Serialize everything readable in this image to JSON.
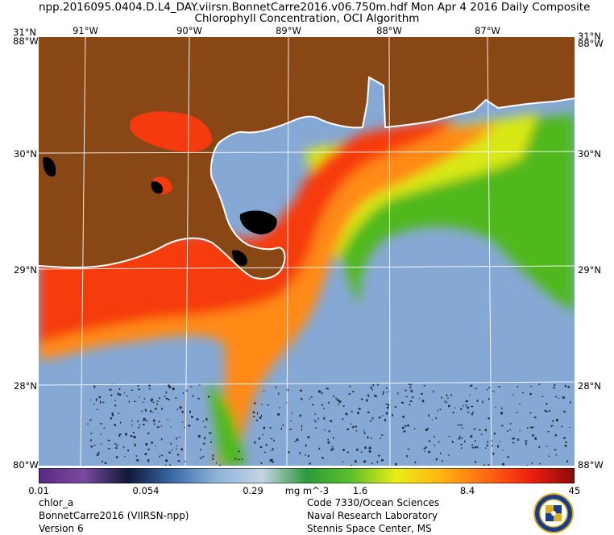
{
  "header": {
    "line1": "npp.2016095.0404.D.L4_DAY.viirsn.BonnetCarre2016.v06.750m.hdf     Mon Apr  4 2016 Daily Composite",
    "line2": "Chlorophyll Concentration, OCI Algorithm"
  },
  "map": {
    "top_lon_labels": [
      "91°W",
      "90°W",
      "89°W",
      "88°W",
      "87°W"
    ],
    "corner_top_left_a": "31°N",
    "corner_top_left_b": "88°W",
    "corner_top_right_a": "31°N",
    "corner_top_right_b": "88°W",
    "corner_bottom_left_a": "80°W",
    "corner_bottom_right_a": "88°W",
    "left_lat_labels": [
      "30°N",
      "29°N",
      "28°N"
    ],
    "right_lat_labels": [
      "30°N",
      "29°N",
      "28°N"
    ],
    "colors": {
      "land": "#8a4716",
      "open_water": "#86a8d4",
      "high_chl": "#f63a10",
      "mid_chl": "#ff8a14",
      "yellow_chl": "#d8e812",
      "green_chl": "#4fb81e",
      "lakes": "#000000",
      "coastline": "#ffffff"
    }
  },
  "colorbar": {
    "ticks": [
      "0.01",
      "0.054",
      "0.29",
      "1.6",
      "8.4",
      "45"
    ],
    "units": "mg m^-3",
    "gradient": [
      "#5a2a82",
      "#7a4aa0",
      "#101838",
      "#3a6aa8",
      "#8fb4da",
      "#c4d4e4",
      "#2e9a3c",
      "#5cc02a",
      "#e8ee14",
      "#ffb414",
      "#ff6a14",
      "#f02010",
      "#8a0a0a"
    ]
  },
  "footer": {
    "left": [
      "chlor_a",
      "BonnetCarre2016 (VIIRSN-npp)",
      "Version 6"
    ],
    "right": [
      "Code 7330/Ocean Sciences",
      "Naval Research Laboratory",
      "Stennis Space Center, MS"
    ]
  }
}
